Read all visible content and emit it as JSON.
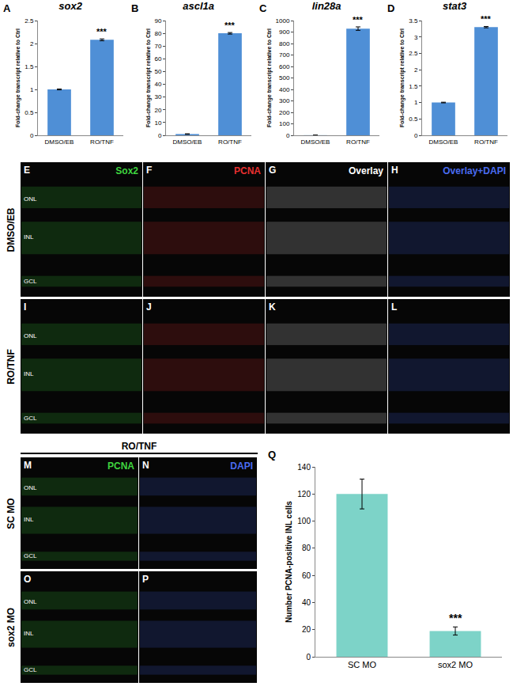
{
  "chart_data": [
    {
      "panel": "A",
      "type": "bar",
      "title": "sox2",
      "y_label": "Fold-change transcript relative to Ctrl",
      "categories": [
        "DMSO/EB",
        "RO/TNF"
      ],
      "values": [
        1.0,
        2.08
      ],
      "errors": [
        0.01,
        0.02
      ],
      "color": "#4f8fd6",
      "ylim": [
        0,
        2.5
      ],
      "yticks": [
        0,
        0.5,
        1,
        1.5,
        2,
        2.5
      ],
      "annotations": [
        {
          "text": "***",
          "category": "RO/TNF"
        }
      ]
    },
    {
      "panel": "B",
      "type": "bar",
      "title": "ascl1a",
      "y_label": "Fold-change transcript relative to Ctrl",
      "categories": [
        "DMSO/EB",
        "RO/TNF"
      ],
      "values": [
        1.0,
        80
      ],
      "errors": [
        0.2,
        0.6
      ],
      "color": "#4f8fd6",
      "ylim": [
        0,
        90
      ],
      "yticks": [
        0,
        10,
        20,
        30,
        40,
        50,
        60,
        70,
        80,
        90
      ],
      "annotations": [
        {
          "text": "***",
          "category": "RO/TNF"
        }
      ]
    },
    {
      "panel": "C",
      "type": "bar",
      "title": "lin28a",
      "y_label": "Fold-change transcript relative to Ctrl",
      "categories": [
        "DMSO/EB",
        "RO/TNF"
      ],
      "values": [
        1.0,
        930
      ],
      "errors": [
        0.5,
        15
      ],
      "color": "#4f8fd6",
      "ylim": [
        0,
        1000
      ],
      "yticks": [
        0,
        100,
        200,
        300,
        400,
        500,
        600,
        700,
        800,
        900,
        1000
      ],
      "annotations": [
        {
          "text": "***",
          "category": "RO/TNF"
        }
      ]
    },
    {
      "panel": "D",
      "type": "bar",
      "title": "stat3",
      "y_label": "Fold-change transcript relative to Ctrl",
      "categories": [
        "DMSO/EB",
        "RO/TNF"
      ],
      "values": [
        1.0,
        3.3
      ],
      "errors": [
        0.01,
        0.02
      ],
      "color": "#4f8fd6",
      "ylim": [
        0,
        3.5
      ],
      "yticks": [
        0,
        0.5,
        1,
        1.5,
        2,
        2.5,
        3,
        3.5
      ],
      "annotations": [
        {
          "text": "***",
          "category": "RO/TNF"
        }
      ]
    },
    {
      "panel": "Q",
      "type": "bar",
      "y_label": "Number PCNA-positive INL cells",
      "categories": [
        "SC MO",
        "sox2 MO"
      ],
      "values": [
        120,
        19
      ],
      "errors": [
        11,
        3
      ],
      "color": "#7dd3c8",
      "ylim": [
        0,
        140
      ],
      "yticks": [
        0,
        20,
        40,
        60,
        80,
        100,
        120,
        140
      ],
      "annotations": [
        {
          "text": "***",
          "category": "sox2 MO"
        }
      ]
    }
  ],
  "image_panels": {
    "top": {
      "rows": [
        {
          "label": "DMSO/EB",
          "panels": [
            "E",
            "F",
            "G",
            "H"
          ]
        },
        {
          "label": "RO/TNF",
          "panels": [
            "I",
            "J",
            "K",
            "L"
          ]
        }
      ],
      "channels": [
        {
          "text": "Sox2",
          "color": "#3fd43f"
        },
        {
          "text": "PCNA",
          "color": "#e53030"
        },
        {
          "text": "Overlay",
          "color": "#ffffff"
        },
        {
          "text": "Overlay+DAPI",
          "color": "#4a6cf0"
        }
      ],
      "layers": [
        "ONL",
        "INL",
        "GCL"
      ]
    },
    "bottom": {
      "header": "RO/TNF",
      "rows": [
        {
          "label": "SC MO",
          "panels": [
            "M",
            "N"
          ]
        },
        {
          "label": "sox2 MO",
          "panels": [
            "O",
            "P"
          ]
        }
      ],
      "channels": [
        {
          "text": "PCNA",
          "color": "#3fd43f"
        },
        {
          "text": "DAPI",
          "color": "#4a6cf0"
        }
      ],
      "layers": [
        "ONL",
        "INL",
        "GCL"
      ]
    }
  }
}
